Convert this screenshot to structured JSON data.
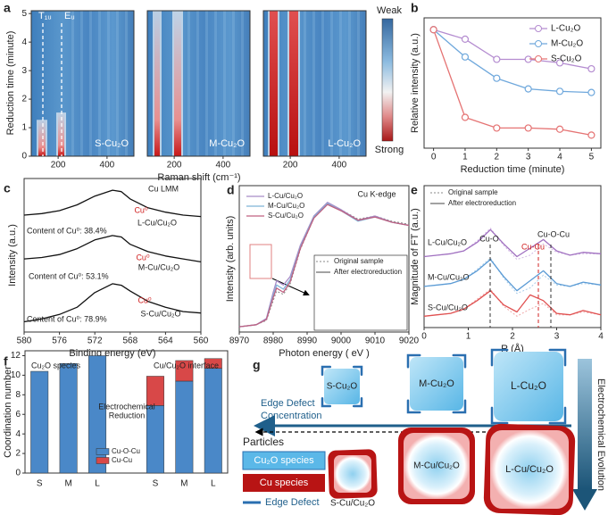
{
  "chart_data": [
    {
      "panel": "a",
      "type": "heatmap",
      "xlabel": "Raman shift (cm⁻¹)",
      "ylabel": "Reduction time (minute)",
      "xlim": [
        90,
        510
      ],
      "xticks": [
        200,
        400
      ],
      "ylim": [
        0,
        5.1
      ],
      "yticks": [
        0,
        1,
        2,
        3,
        4,
        5
      ],
      "plots": [
        "S-Cu₂O",
        "M-Cu₂O",
        "L-Cu₂O"
      ],
      "annotations": [
        "T₁ᵤ",
        "Eᵤ"
      ],
      "colorbar": [
        "Weak",
        "Strong"
      ]
    },
    {
      "panel": "b",
      "type": "line",
      "xlabel": "Reduction time (minute)",
      "ylabel": "Relative intensity (a.u.)",
      "x": [
        0,
        1,
        2,
        3,
        4,
        5
      ],
      "xlim": [
        -0.3,
        5.3
      ],
      "xticks": [
        0,
        1,
        2,
        3,
        4,
        5
      ],
      "ylim": [
        0,
        1.1
      ],
      "markers": true,
      "legend": "upper right",
      "series": [
        {
          "name": "L-Cu₂O",
          "color": "#b48cd0",
          "values": [
            1,
            0.92,
            0.75,
            0.75,
            0.72,
            0.67
          ]
        },
        {
          "name": "M-Cu₂O",
          "color": "#6fa8dc",
          "values": [
            1,
            0.77,
            0.59,
            0.5,
            0.48,
            0.47
          ]
        },
        {
          "name": "S-Cu₂O",
          "color": "#e57373",
          "values": [
            1,
            0.26,
            0.17,
            0.17,
            0.16,
            0.11
          ]
        }
      ]
    },
    {
      "panel": "c",
      "type": "line",
      "xlabel": "Binding energy (eV)",
      "ylabel": "Intensity (a.u.)",
      "x": [
        580,
        578,
        576,
        574,
        572,
        570,
        569,
        568,
        566,
        564,
        562,
        560
      ],
      "xlim": [
        580,
        560
      ],
      "xticks": [
        580,
        576,
        572,
        568,
        564,
        560
      ],
      "ylim": [
        0,
        10.5
      ],
      "series": [
        {
          "color": "#111111",
          "values": [
            8.0,
            8.1,
            8.3,
            8.7,
            9.3,
            9.7,
            9.6,
            9.1,
            8.5,
            8.2,
            8.0,
            7.9
          ]
        },
        {
          "color": "#111111",
          "values": [
            5.0,
            5.1,
            5.3,
            5.7,
            6.3,
            6.6,
            6.5,
            6.0,
            5.5,
            5.2,
            5.0,
            4.8
          ]
        },
        {
          "color": "#111111",
          "values": [
            0.7,
            0.9,
            1.2,
            1.7,
            2.7,
            3.3,
            3.2,
            2.8,
            2.1,
            1.7,
            1.4,
            1.3
          ]
        }
      ],
      "annotations": [
        "Cu LMM",
        "Cu⁰",
        "L-Cu/Cu₂O",
        "Content of Cu⁰: 38.4%",
        "Cu⁰",
        "M-Cu/Cu₂O",
        "Content of Cu⁰: 53.1%",
        "Cu⁰",
        "S-Cu/Cu₂O",
        "Content of Cu⁰: 78.9%"
      ]
    },
    {
      "panel": "d",
      "type": "line",
      "xlabel": "Photon energy ( eV )",
      "ylabel": "Intensity (arb. units)",
      "x": [
        8970,
        8975,
        8978,
        8980,
        8981,
        8983,
        8985,
        8988,
        8992,
        8996,
        9000,
        9005,
        9010,
        9015,
        9020
      ],
      "xlim": [
        8970,
        9020
      ],
      "xticks": [
        8970,
        8980,
        8990,
        9000,
        9010,
        9020
      ],
      "ylim": [
        -0.05,
        1.35
      ],
      "legend": "upper left",
      "series": [
        {
          "color": "#888888",
          "dash": true,
          "values": [
            0,
            0.02,
            0.06,
            0.25,
            0.34,
            0.31,
            0.41,
            0.74,
            1.04,
            1.17,
            1.12,
            1.03,
            1.06,
            1.01,
            0.98
          ]
        },
        {
          "name": "L-Cu/Cu₂O",
          "color": "#a88cc8",
          "values": [
            0,
            0.02,
            0.08,
            0.33,
            0.44,
            0.4,
            0.48,
            0.78,
            1.06,
            1.19,
            1.12,
            1.02,
            1.06,
            1.0,
            0.97
          ]
        },
        {
          "name": "M-Cu/Cu₂O",
          "color": "#7fb3d8",
          "values": [
            0,
            0.02,
            0.07,
            0.3,
            0.4,
            0.36,
            0.45,
            0.76,
            1.05,
            1.18,
            1.11,
            1.01,
            1.05,
            1.0,
            0.97
          ]
        },
        {
          "name": "S-Cu/Cu₂O",
          "color": "#c06080",
          "values": [
            0,
            0.02,
            0.07,
            0.28,
            0.37,
            0.33,
            0.43,
            0.75,
            1.04,
            1.17,
            1.11,
            1.02,
            1.05,
            1.0,
            0.97
          ]
        }
      ],
      "line_styles": [
        "Original sample",
        "After electroreduction"
      ],
      "annotations": [
        "Cu K-edge"
      ]
    },
    {
      "panel": "e",
      "type": "line",
      "xlabel": "R (Å)",
      "ylabel": "Magnitude of FT (a.u.)",
      "x": [
        0,
        0.3,
        0.6,
        0.9,
        1.2,
        1.5,
        1.8,
        2.1,
        2.4,
        2.7,
        3.0,
        3.3,
        3.6,
        4.0
      ],
      "xlim": [
        0,
        4
      ],
      "xticks": [
        0,
        1,
        2,
        3,
        4
      ],
      "ylim": [
        0,
        10
      ],
      "series": [
        {
          "color": "#d2b8e4",
          "dash": true,
          "values": [
            5.0,
            5.1,
            5.2,
            5.4,
            6.1,
            7.0,
            5.8,
            4.8,
            5.1,
            5.9,
            5.3,
            5.1,
            5.2,
            5.2
          ]
        },
        {
          "color": "#a9cdea",
          "dash": true,
          "values": [
            2.9,
            3.0,
            3.1,
            3.4,
            4.1,
            4.9,
            3.5,
            2.4,
            2.8,
            3.7,
            3.0,
            2.9,
            3.1,
            3.0
          ]
        },
        {
          "color": "#f0a8a8",
          "dash": true,
          "values": [
            0.8,
            0.9,
            1.0,
            1.3,
            2.0,
            2.7,
            1.5,
            0.8,
            1.3,
            1.7,
            0.9,
            0.9,
            1.1,
            0.9
          ]
        },
        {
          "color": "#a070c0",
          "values": [
            5.0,
            5.1,
            5.2,
            5.4,
            6.0,
            6.9,
            5.9,
            5.0,
            5.6,
            6.2,
            5.4,
            5.1,
            5.3,
            5.2
          ]
        },
        {
          "color": "#5b9bd5",
          "values": [
            2.9,
            3.0,
            3.1,
            3.4,
            4.0,
            4.8,
            3.6,
            2.6,
            3.3,
            4.0,
            3.1,
            2.9,
            3.2,
            3.0
          ]
        },
        {
          "color": "#e05050",
          "values": [
            0.8,
            0.9,
            1.0,
            1.3,
            1.9,
            2.6,
            1.6,
            1.1,
            2.3,
            1.9,
            1.0,
            0.9,
            1.2,
            0.9
          ]
        }
      ],
      "line_styles": [
        "Original sample",
        "After electroreduction"
      ],
      "annotations": [
        "Cu-O",
        "Cu-Cu",
        "Cu-O-Cu",
        "L-Cu/Cu₂O",
        "M-Cu/Cu₂O",
        "S-Cu/Cu₂O"
      ]
    },
    {
      "panel": "f",
      "type": "bar",
      "stacked": true,
      "ylabel": "Coordination number",
      "categories": [
        "S",
        "M",
        "L",
        null,
        "S",
        "M",
        "L"
      ],
      "ylim": [
        0,
        12.5
      ],
      "yticks": [
        0,
        2,
        4,
        6,
        8,
        10,
        12
      ],
      "series": [
        {
          "name": "Cu-O-Cu",
          "color": "#4a88c8",
          "values": [
            10.4,
            11.2,
            12.0,
            null,
            6.9,
            9.4,
            10.7
          ]
        },
        {
          "name": "Cu-Cu",
          "color": "#d84848",
          "values": [
            null,
            null,
            null,
            null,
            3.0,
            2.1,
            1.0
          ]
        }
      ],
      "annotations": [
        "Cu₂O species",
        "Cu/Cu₂O interface",
        "Electrochemical",
        "Reduction"
      ]
    }
  ],
  "diagram": {
    "panel": "g",
    "particles": [
      "S-Cu₂O",
      "M-Cu₂O",
      "L-Cu₂O"
    ],
    "reduced": [
      "S-Cu/Cu₂O",
      "M-Cu/Cu₂O",
      "L-Cu/Cu₂O"
    ],
    "arrow_label": [
      "Edge Defect",
      "Concentration"
    ],
    "legend_title": "Particles",
    "legend": [
      "Cu₂O species",
      "Cu species",
      "Edge Defect"
    ],
    "side_label": "Electrochemical Evolution"
  }
}
